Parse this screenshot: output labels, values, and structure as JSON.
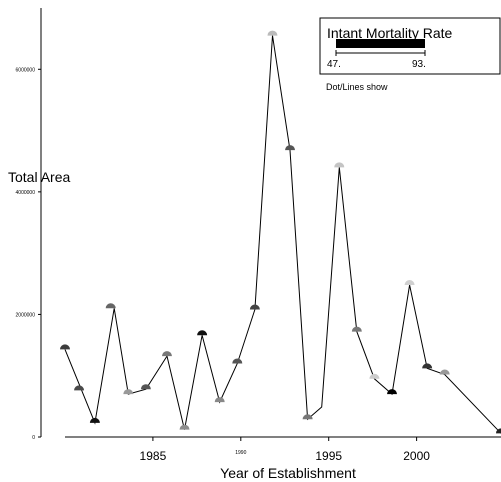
{
  "chart_data": {
    "type": "line",
    "xlabel": "Year of Establishment",
    "ylabel": "Total Area",
    "xlim": [
      1980,
      2004.8
    ],
    "ylim": [
      0,
      7000000
    ],
    "x_ticks": [
      {
        "value": 1985,
        "label": "1985",
        "minor": false
      },
      {
        "value": 1990,
        "label": "1990",
        "minor": true
      },
      {
        "value": 1995,
        "label": "1995",
        "minor": false
      },
      {
        "value": 2000,
        "label": "2000",
        "minor": false
      }
    ],
    "y_ticks": [
      {
        "value": 0,
        "label": "0"
      },
      {
        "value": 2000000,
        "label": "2000000"
      },
      {
        "value": 4000000,
        "label": "4000000"
      },
      {
        "value": 6000000,
        "label": "6000000"
      }
    ],
    "line_points": [
      {
        "x": 1980.0,
        "y": 1430000
      },
      {
        "x": 1981.7,
        "y": 230000
      },
      {
        "x": 1982.8,
        "y": 2100000
      },
      {
        "x": 1983.6,
        "y": 700000
      },
      {
        "x": 1984.6,
        "y": 780000
      },
      {
        "x": 1985.8,
        "y": 1320000
      },
      {
        "x": 1986.8,
        "y": 120000
      },
      {
        "x": 1987.8,
        "y": 1660000
      },
      {
        "x": 1988.8,
        "y": 570000
      },
      {
        "x": 1989.8,
        "y": 1200000
      },
      {
        "x": 1990.8,
        "y": 2080000
      },
      {
        "x": 1991.8,
        "y": 6550000
      },
      {
        "x": 1992.8,
        "y": 4680000
      },
      {
        "x": 1993.8,
        "y": 290000
      },
      {
        "x": 1994.6,
        "y": 490000
      },
      {
        "x": 1995.6,
        "y": 4400000
      },
      {
        "x": 1996.6,
        "y": 1720000
      },
      {
        "x": 1997.6,
        "y": 950000
      },
      {
        "x": 1998.6,
        "y": 700000
      },
      {
        "x": 1999.6,
        "y": 2480000
      },
      {
        "x": 2000.6,
        "y": 1120000
      },
      {
        "x": 2001.6,
        "y": 1020000
      },
      {
        "x": 2004.8,
        "y": 60000
      }
    ],
    "dots": [
      {
        "x": 1980.0,
        "y": 1430000,
        "shade": "#3c3c3c"
      },
      {
        "x": 1980.8,
        "y": 760000,
        "shade": "#4a4a4a"
      },
      {
        "x": 1981.7,
        "y": 230000,
        "shade": "#111111"
      },
      {
        "x": 1982.6,
        "y": 2100000,
        "shade": "#666666"
      },
      {
        "x": 1983.6,
        "y": 700000,
        "shade": "#999999"
      },
      {
        "x": 1984.6,
        "y": 780000,
        "shade": "#555555"
      },
      {
        "x": 1985.8,
        "y": 1320000,
        "shade": "#777777"
      },
      {
        "x": 1986.8,
        "y": 120000,
        "shade": "#8c8c8c"
      },
      {
        "x": 1987.8,
        "y": 1660000,
        "shade": "#111111"
      },
      {
        "x": 1988.8,
        "y": 570000,
        "shade": "#888888"
      },
      {
        "x": 1989.8,
        "y": 1200000,
        "shade": "#555555"
      },
      {
        "x": 1990.8,
        "y": 2080000,
        "shade": "#444444"
      },
      {
        "x": 1991.8,
        "y": 6550000,
        "shade": "#bbbbbb"
      },
      {
        "x": 1992.8,
        "y": 4680000,
        "shade": "#555555"
      },
      {
        "x": 1993.8,
        "y": 290000,
        "shade": "#777777"
      },
      {
        "x": 1995.6,
        "y": 4400000,
        "shade": "#c4c4c4"
      },
      {
        "x": 1996.6,
        "y": 1720000,
        "shade": "#777777"
      },
      {
        "x": 1997.6,
        "y": 950000,
        "shade": "#cccccc"
      },
      {
        "x": 1998.6,
        "y": 700000,
        "shade": "#000000"
      },
      {
        "x": 1999.6,
        "y": 2480000,
        "shade": "#d0d0d0"
      },
      {
        "x": 2000.6,
        "y": 1120000,
        "shade": "#333333"
      },
      {
        "x": 2001.6,
        "y": 1020000,
        "shade": "#999999"
      },
      {
        "x": 2004.8,
        "y": 60000,
        "shade": "#222222"
      }
    ],
    "legend": {
      "title": "Intant Mortality Rate",
      "min_label": "47.",
      "max_label": "93.",
      "note": "Dot/Lines show",
      "position": "top-right"
    },
    "grid": false
  }
}
